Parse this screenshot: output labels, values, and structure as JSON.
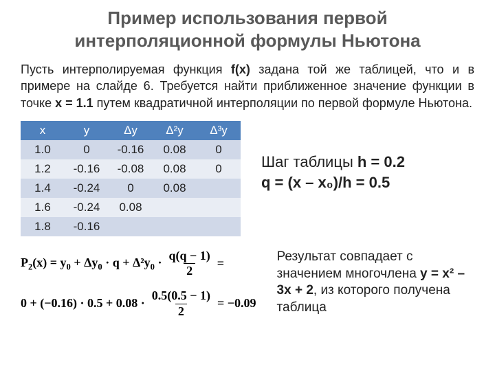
{
  "title": "Пример использования первой интерполяционной формулы Ньютона",
  "intro_html": "Пусть интерполируемая функция <b>f(x)</b> задана той же таблицей, что и в примере на слайде 6. Требуется найти приближенное значение функции в точке <b>x = 1.1</b> путем квадратичной интерполяции по первой формуле Ньютона.",
  "table": {
    "header_bg": "#4f81bd",
    "header_fg": "#ffffff",
    "row_odd_bg": "#d0d8e8",
    "row_even_bg": "#e9edf4",
    "columns": [
      "x",
      "y",
      "Δy",
      "Δ²y",
      "Δ³y"
    ],
    "rows": [
      [
        "1.0",
        "0",
        "-0.16",
        "0.08",
        "0"
      ],
      [
        "1.2",
        "-0.16",
        "-0.08",
        "0.08",
        "0"
      ],
      [
        "1.4",
        "-0.24",
        "0",
        "0.08",
        ""
      ],
      [
        "1.6",
        "-0.24",
        "0.08",
        "",
        ""
      ],
      [
        "1.8",
        "-0.16",
        "",
        "",
        ""
      ]
    ]
  },
  "right_formulas": {
    "line1_prefix": "Шаг таблицы ",
    "line1_bold": "h = 0.2",
    "line2": "q = (x – x₀)/h = 0.5"
  },
  "p2": {
    "line1_lead": "P",
    "line1_idx": "2",
    "line1_after": "(x) = y",
    "line1_y0idx": "0",
    "line1_plus1": "+ Δy",
    "line1_dy0idx": "0",
    "line1_q": "· q + Δ²y",
    "line1_d2y0idx": "0",
    "line1_dot": " ·",
    "frac1_num": "q(q − 1)",
    "frac1_den": "2",
    "line1_tail": "=",
    "line2_lead": "0 + (−0.16) · 0.5 + 0.08 ·",
    "frac2_num": "0.5(0.5 − 1)",
    "frac2_den": "2",
    "line2_tail": "= −0.09"
  },
  "result_html": "Результат совпадает с значением многочлена <b>у = x² – 3x + 2</b>, из которого получена таблица"
}
